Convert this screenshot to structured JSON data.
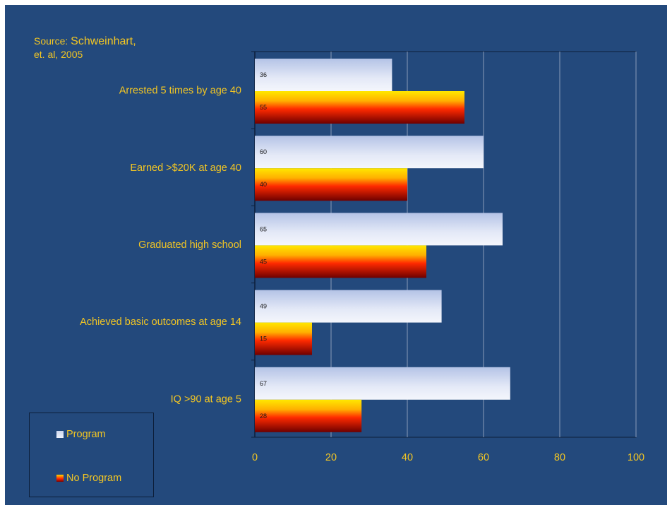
{
  "source": {
    "prefix": "Source:",
    "author": "Schweinhart,",
    "etal": "et. al,",
    "year": "2005"
  },
  "legend": {
    "program_label": "Program",
    "noprogram_label": "No Program"
  },
  "colors": {
    "background": "#23497c",
    "text": "#f3c623",
    "program_bar": "#dde4f5",
    "noprogram_bar": "#ff2a00"
  },
  "chart_data": {
    "type": "bar",
    "orientation": "horizontal",
    "categories": [
      "Arrested 5 times by age 40",
      "Earned >$20K at age 40",
      "Graduated high school",
      "Achieved basic outcomes at age 14",
      "IQ >90 at age 5"
    ],
    "series": [
      {
        "name": "Program",
        "values": [
          36,
          60,
          65,
          49,
          67
        ]
      },
      {
        "name": "No Program",
        "values": [
          55,
          40,
          45,
          15,
          28
        ]
      }
    ],
    "xlim": [
      0,
      100
    ],
    "xticks": [
      0,
      20,
      40,
      60,
      80,
      100
    ],
    "grid": true,
    "legend_position": "bottom-left"
  }
}
